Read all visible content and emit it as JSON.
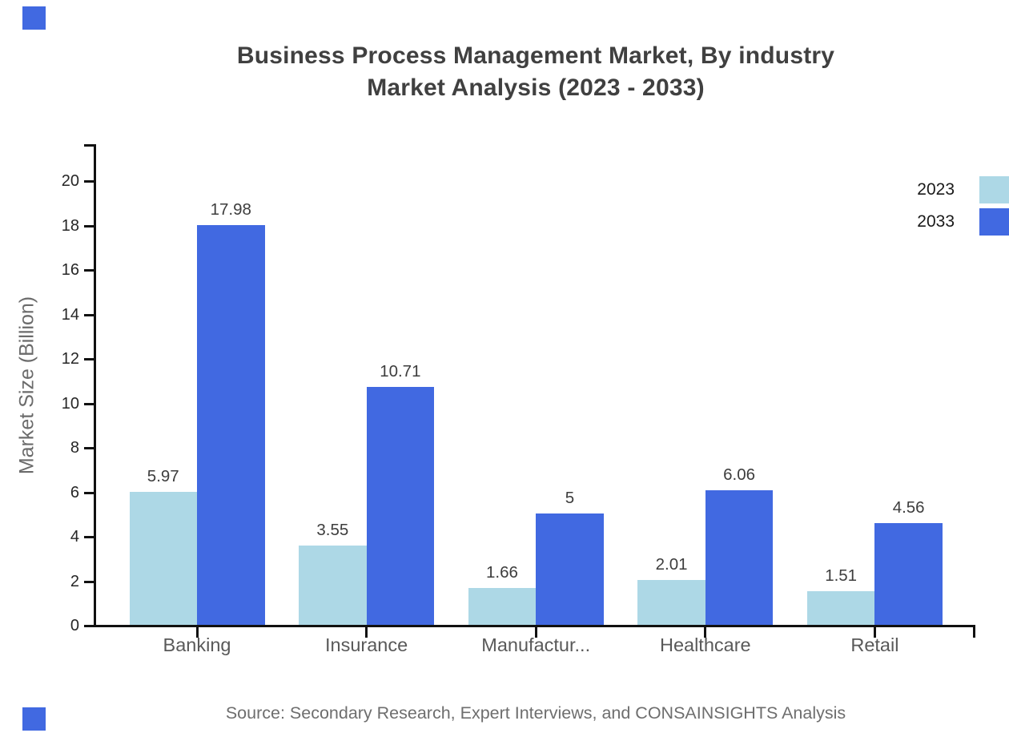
{
  "title": {
    "line1": "Business Process Management Market, By industry",
    "line2": "Market Analysis (2023 - 2033)"
  },
  "source": "Source: Secondary Research, Expert Interviews, and CONSAINSIGHTS Analysis",
  "legend": {
    "items": [
      "2023",
      "2033"
    ],
    "position": "top-right"
  },
  "colors": {
    "series_2023": "#ADD8E6",
    "series_2033": "#4169E1",
    "brand_square": "#4169E1",
    "axis": "#111111"
  },
  "chart_data": {
    "type": "bar",
    "title": "Business Process Management Market, By industry Market Analysis (2023 - 2033)",
    "categories": [
      "Banking",
      "Insurance",
      "Manufactur...",
      "Healthcare",
      "Retail"
    ],
    "series": [
      {
        "name": "2023",
        "color": "#ADD8E6",
        "values": [
          5.97,
          3.55,
          1.66,
          2.01,
          1.51
        ]
      },
      {
        "name": "2033",
        "color": "#4169E1",
        "values": [
          17.98,
          10.71,
          5,
          6.06,
          4.56
        ]
      }
    ],
    "xlabel": "",
    "ylabel": "Market Size (Billion)",
    "ylim": [
      0,
      21.6
    ],
    "yticks": [
      0,
      2,
      4,
      6,
      8,
      10,
      12,
      14,
      16,
      18,
      20
    ],
    "grid": false,
    "legend_position": "top-right",
    "value_labels_shown": true
  }
}
